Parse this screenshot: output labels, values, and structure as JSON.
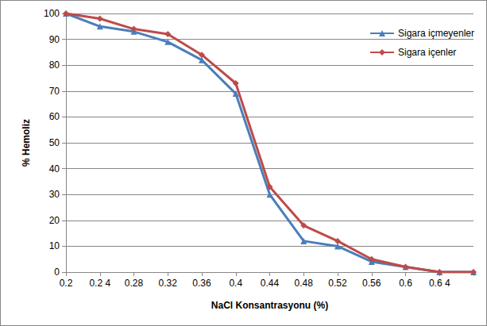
{
  "chart_data": {
    "type": "line",
    "x_label": "NaCl Konsantrasyonu (%)",
    "y_label": "% Hemoliz",
    "categories": [
      "0.2",
      "0.2 4",
      "0.28",
      "0.32",
      "0.36",
      "0.4",
      "0.44",
      "0.48",
      "0.52",
      "0.56",
      "0.6",
      "0.6 4",
      null
    ],
    "series": [
      {
        "name": "Sigara içmeyenler",
        "color": "#4a7ebb",
        "marker": "triangle",
        "line_style": "solid",
        "values": [
          100,
          95,
          93,
          89,
          82,
          69,
          30,
          12,
          10,
          4,
          2,
          0,
          0
        ]
      },
      {
        "name": "Sigara içenler",
        "color": "#be4b48",
        "marker": "diamond",
        "line_style": "solid",
        "values": [
          100,
          98,
          94,
          92,
          84,
          73,
          33,
          18,
          12,
          5,
          2,
          0,
          0
        ]
      }
    ],
    "ylim": [
      0,
      100
    ],
    "yticks": [
      0,
      10,
      20,
      30,
      40,
      50,
      60,
      70,
      80,
      90,
      100
    ],
    "grid": true,
    "legend": "top-right"
  }
}
